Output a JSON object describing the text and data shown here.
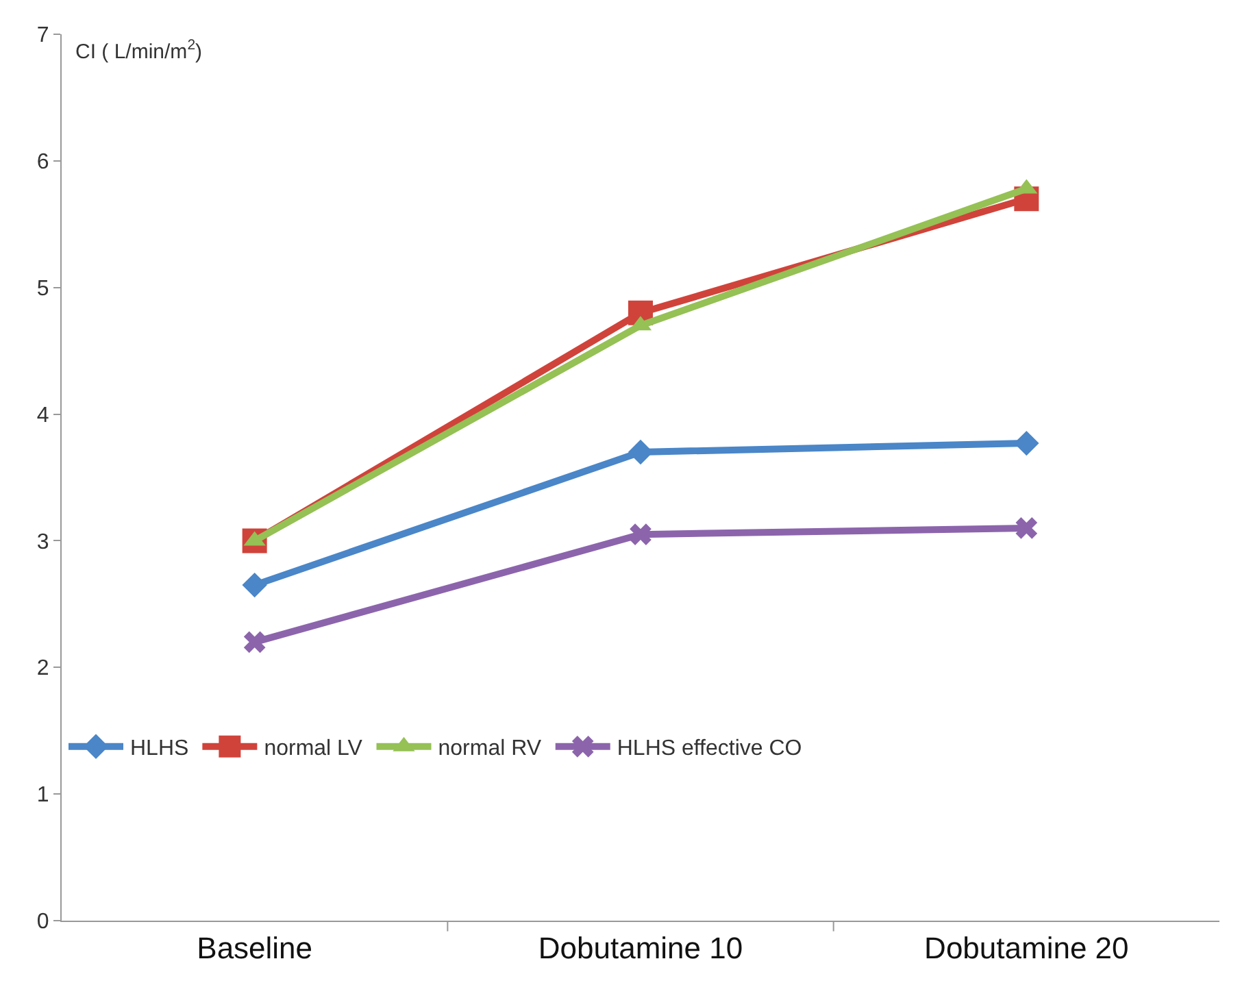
{
  "chart_data": {
    "type": "line",
    "ylabel": "CI ( L/min/m$^{2}$)",
    "categories": [
      "Baseline",
      "Dobutamine 10",
      "Dobutamine 20"
    ],
    "series": [
      {
        "name": "HLHS",
        "color": "#4a86c8",
        "marker": "diamond",
        "values": [
          2.65,
          3.7,
          3.77
        ]
      },
      {
        "name": "normal LV",
        "color": "#d0433b",
        "marker": "square",
        "values": [
          3.0,
          4.8,
          5.7
        ]
      },
      {
        "name": "normal RV",
        "color": "#95c155",
        "marker": "triangle",
        "values": [
          3.0,
          4.7,
          5.78
        ]
      },
      {
        "name": "HLHS effective CO",
        "color": "#8c64ac",
        "marker": "cross",
        "values": [
          2.2,
          3.05,
          3.1
        ]
      }
    ],
    "ylim": [
      0,
      7
    ],
    "yticks": [
      0,
      1,
      2,
      3,
      4,
      5,
      6,
      7
    ],
    "grid": false,
    "legend": "bottom left",
    "line_style": "solid"
  }
}
